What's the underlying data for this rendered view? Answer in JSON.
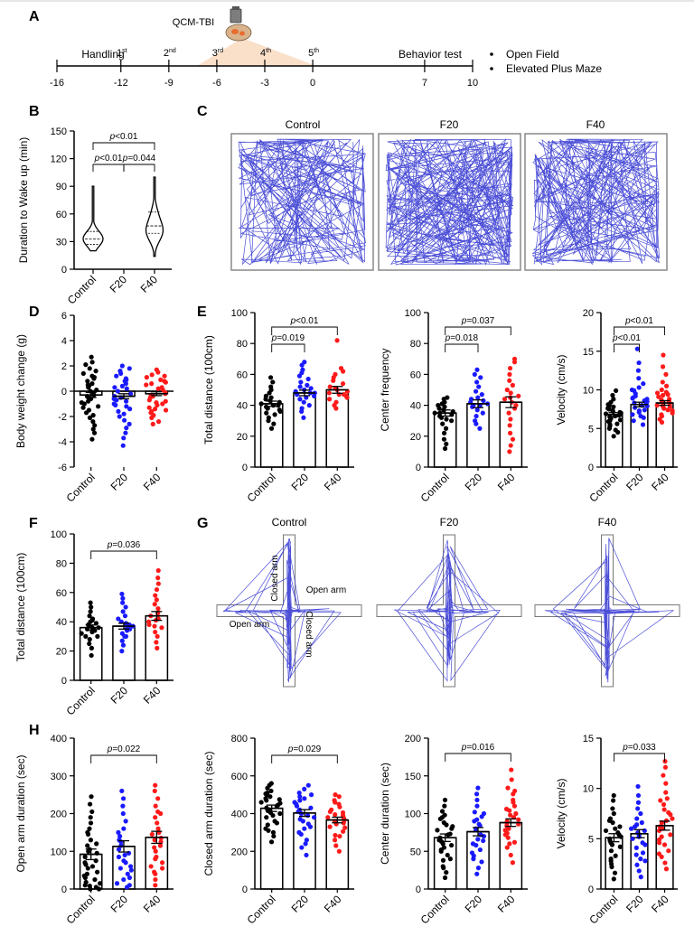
{
  "panels": {
    "A": {
      "letter": "A",
      "device": "QCM-TBI",
      "handling_label": "Handling",
      "behavior_label": "Behavior test",
      "tests": [
        "Open Field",
        "Elevated Plus Maze"
      ],
      "axis_ticks": [
        -16,
        -12,
        -9,
        -6,
        -3,
        0,
        7,
        10
      ],
      "injections": [
        {
          "num": "1",
          "sup": "st",
          "day": -12
        },
        {
          "num": "2",
          "sup": "nd",
          "day": -9
        },
        {
          "num": "3",
          "sup": "rd",
          "day": -6
        },
        {
          "num": "4",
          "sup": "th",
          "day": -3
        },
        {
          "num": "5",
          "sup": "th",
          "day": 0
        }
      ]
    },
    "B": {
      "letter": "B"
    },
    "C": {
      "letter": "C",
      "groups": [
        "Control",
        "F20",
        "F40"
      ]
    },
    "D": {
      "letter": "D"
    },
    "E": {
      "letter": "E"
    },
    "F": {
      "letter": "F"
    },
    "G": {
      "letter": "G",
      "groups": [
        "Control",
        "F20",
        "F40"
      ],
      "closed_arm_label": "Closed arm",
      "open_arm_label": "Open arm"
    },
    "H": {
      "letter": "H"
    }
  },
  "colors": {
    "Control": "#000000",
    "F20": "#1a1aff",
    "F40": "#ff1a1a",
    "track": "#2b2fcf"
  },
  "chart_data": [
    {
      "id": "B",
      "type": "violin",
      "ylabel": "Duration to Wake  up (min)",
      "ylim": [
        0,
        150
      ],
      "yticks": [
        0,
        30,
        60,
        90,
        120,
        150
      ],
      "categories": [
        "Control",
        "F20",
        "F40"
      ],
      "series": [
        {
          "name": "Control",
          "median": 33,
          "q1": 27,
          "q3": 41,
          "min": 20,
          "max": 90
        },
        {
          "name": "F40",
          "median": 47,
          "q1": 39,
          "q3": 62,
          "min": 14,
          "max": 100
        }
      ],
      "annotations": [
        {
          "from": 0,
          "to": 2,
          "label": "p<0.01"
        },
        {
          "from": 0,
          "to": 1,
          "label": "p<0.01"
        },
        {
          "from": 1,
          "to": 2,
          "label": "p=0.044"
        }
      ]
    },
    {
      "id": "D",
      "type": "bar",
      "ylabel": "Body weight change (g)",
      "ylim": [
        -6,
        6
      ],
      "yticks": [
        -6,
        -4,
        -2,
        0,
        2,
        4,
        6
      ],
      "categories": [
        "Control",
        "F20",
        "F40"
      ],
      "means": [
        -0.3,
        -0.4,
        -0.2
      ],
      "sems": [
        0.2,
        0.2,
        0.15
      ],
      "points": [
        [
          2.7,
          2.3,
          2.1,
          1.8,
          1.6,
          1.4,
          1.2,
          1.0,
          0.8,
          0.6,
          0.4,
          0.3,
          0.1,
          0.0,
          -0.1,
          -0.2,
          -0.4,
          -0.5,
          -0.6,
          -0.8,
          -1.0,
          -1.2,
          -1.3,
          -1.5,
          -1.7,
          -1.9,
          -2.1,
          -2.4,
          -2.7,
          -3.0,
          -3.3,
          -3.8,
          -0.3,
          0.5,
          -0.9,
          1.1
        ],
        [
          2.0,
          1.8,
          1.6,
          1.4,
          1.2,
          1.0,
          0.8,
          0.6,
          0.4,
          0.2,
          0.0,
          -0.2,
          -0.4,
          -0.6,
          -0.8,
          -1.0,
          -1.2,
          -1.4,
          -1.6,
          -1.8,
          -2.0,
          -2.3,
          -2.6,
          -2.9,
          -3.3,
          -3.7,
          -4.3,
          0.9,
          -0.5,
          -1.1,
          0.3,
          -0.7
        ],
        [
          1.7,
          1.5,
          1.3,
          1.1,
          0.9,
          0.7,
          0.5,
          0.3,
          0.1,
          -0.1,
          -0.3,
          -0.5,
          -0.7,
          -0.9,
          -1.1,
          -1.3,
          -1.5,
          -1.7,
          -1.9,
          -2.1,
          -2.4,
          -2.6,
          0.6,
          -0.4,
          -1.0,
          1.2,
          0.2,
          -0.8,
          -1.4,
          0.8,
          -0.2,
          -1.6
        ]
      ],
      "annotations": []
    },
    {
      "id": "E1",
      "type": "bar",
      "ylabel": "Total distance (100cm)",
      "ylim": [
        0,
        100
      ],
      "yticks": [
        0,
        20,
        40,
        60,
        80,
        100
      ],
      "categories": [
        "Control",
        "F20",
        "F40"
      ],
      "means": [
        41,
        48,
        50
      ],
      "sems": [
        1.7,
        1.8,
        2.2
      ],
      "points": [
        [
          25,
          28,
          30,
          32,
          34,
          35,
          37,
          38,
          39,
          40,
          41,
          42,
          43,
          44,
          45,
          46,
          48,
          50,
          52,
          55,
          58,
          40,
          36
        ],
        [
          32,
          36,
          38,
          40,
          42,
          44,
          45,
          46,
          47,
          48,
          49,
          50,
          51,
          52,
          53,
          55,
          57,
          59,
          61,
          63,
          66,
          68,
          48
        ],
        [
          38,
          40,
          42,
          44,
          45,
          46,
          47,
          48,
          49,
          50,
          52,
          54,
          56,
          58,
          60,
          62,
          64,
          82,
          51,
          47
        ]
      ],
      "annotations": [
        {
          "from": 0,
          "to": 2,
          "label": "p<0.01"
        },
        {
          "from": 0,
          "to": 1,
          "label": "p=0.019"
        }
      ]
    },
    {
      "id": "E2",
      "type": "bar",
      "ylabel": "Center frequency",
      "ylim": [
        0,
        100
      ],
      "yticks": [
        0,
        20,
        40,
        60,
        80,
        100
      ],
      "categories": [
        "Control",
        "F20",
        "F40"
      ],
      "means": [
        35,
        41,
        42
      ],
      "sems": [
        2,
        2.5,
        3.5
      ],
      "points": [
        [
          12,
          15,
          18,
          22,
          25,
          28,
          30,
          32,
          33,
          34,
          35,
          36,
          37,
          38,
          39,
          40,
          41,
          42,
          44,
          45,
          35,
          31
        ],
        [
          25,
          28,
          30,
          33,
          35,
          37,
          39,
          40,
          41,
          42,
          43,
          44,
          45,
          47,
          49,
          52,
          55,
          58,
          60,
          63,
          40
        ],
        [
          10,
          14,
          18,
          22,
          27,
          31,
          35,
          38,
          40,
          42,
          44,
          46,
          48,
          50,
          53,
          56,
          60,
          64,
          68,
          70,
          45
        ]
      ],
      "annotations": [
        {
          "from": 0,
          "to": 2,
          "label": "p=0.037"
        },
        {
          "from": 0,
          "to": 1,
          "label": "p=0.018"
        }
      ]
    },
    {
      "id": "E3",
      "type": "bar",
      "ylabel": "Velocity (cm/s)",
      "ylim": [
        0,
        20
      ],
      "yticks": [
        0,
        5,
        10,
        15,
        20
      ],
      "categories": [
        "Control",
        "F20",
        "F40"
      ],
      "means": [
        6.8,
        8.1,
        8.3
      ],
      "sems": [
        0.25,
        0.3,
        0.3
      ],
      "points": [
        [
          4.0,
          4.5,
          5.0,
          5.3,
          5.6,
          5.9,
          6.1,
          6.3,
          6.5,
          6.7,
          6.9,
          7.1,
          7.3,
          7.5,
          7.8,
          8.1,
          8.4,
          8.8,
          9.3,
          9.9,
          6.0,
          6.6,
          7.0,
          5.5,
          7.6,
          6.2,
          6.8,
          7.2,
          8.0,
          4.8
        ],
        [
          5.5,
          6.0,
          6.4,
          6.8,
          7.1,
          7.4,
          7.7,
          8.0,
          8.3,
          8.6,
          8.9,
          9.2,
          9.5,
          9.9,
          10.3,
          10.8,
          11.5,
          12.5,
          13.5,
          15.3,
          7.9,
          8.2,
          6.6,
          9.0,
          8.5,
          7.3,
          10.0,
          8.8
        ],
        [
          5.8,
          6.2,
          6.6,
          7.0,
          7.3,
          7.6,
          7.9,
          8.2,
          8.5,
          8.8,
          9.1,
          9.4,
          9.7,
          10.0,
          10.5,
          11.0,
          12.0,
          13.0,
          14.5,
          8.0,
          8.7,
          7.4,
          9.3,
          7.8,
          8.4,
          6.8,
          9.6
        ]
      ],
      "annotations": [
        {
          "from": 0,
          "to": 2,
          "label": "p<0.01"
        },
        {
          "from": 0,
          "to": 1,
          "label": "p<0.01"
        }
      ]
    },
    {
      "id": "F",
      "type": "bar",
      "ylabel": "Total distance (100cm)",
      "ylim": [
        0,
        100
      ],
      "yticks": [
        0,
        20,
        40,
        60,
        80,
        100
      ],
      "categories": [
        "Control",
        "F20",
        "F40"
      ],
      "means": [
        36,
        37,
        44
      ],
      "sems": [
        1.8,
        2,
        3
      ],
      "points": [
        [
          17,
          22,
          25,
          28,
          30,
          32,
          33,
          34,
          35,
          36,
          37,
          38,
          39,
          40,
          41,
          42,
          44,
          47,
          50,
          53,
          30,
          36
        ],
        [
          20,
          24,
          27,
          30,
          32,
          34,
          35,
          36,
          37,
          38,
          39,
          40,
          42,
          44,
          47,
          50,
          53,
          56,
          59,
          35,
          30
        ],
        [
          22,
          26,
          30,
          33,
          36,
          38,
          40,
          42,
          44,
          46,
          49,
          52,
          55,
          58,
          62,
          66,
          70,
          75,
          41,
          37
        ]
      ],
      "annotations": [
        {
          "from": 0,
          "to": 2,
          "label": "p=0.036"
        }
      ]
    },
    {
      "id": "H1",
      "type": "bar",
      "ylabel": "Open arm duration (sec)",
      "ylim": [
        0,
        400
      ],
      "yticks": [
        0,
        100,
        200,
        300,
        400
      ],
      "categories": [
        "Control",
        "F20",
        "F40"
      ],
      "means": [
        92,
        113,
        137
      ],
      "sems": [
        14,
        15,
        16
      ],
      "points": [
        [
          0,
          5,
          10,
          18,
          25,
          35,
          45,
          55,
          65,
          75,
          85,
          95,
          105,
          115,
          130,
          145,
          160,
          175,
          190,
          205,
          225,
          245,
          15,
          40,
          70,
          100,
          0,
          8,
          150,
          60,
          120,
          30
        ],
        [
          5,
          15,
          25,
          40,
          55,
          70,
          85,
          95,
          105,
          115,
          125,
          140,
          160,
          180,
          200,
          220,
          240,
          260,
          30,
          60,
          90,
          130,
          10,
          75,
          150,
          50
        ],
        [
          10,
          25,
          40,
          55,
          70,
          85,
          100,
          115,
          125,
          135,
          145,
          160,
          175,
          190,
          205,
          220,
          240,
          260,
          275,
          60,
          110,
          150,
          80,
          200,
          130,
          45
        ]
      ],
      "annotations": [
        {
          "from": 0,
          "to": 2,
          "label": "p=0.022"
        }
      ]
    },
    {
      "id": "H2",
      "type": "bar",
      "ylabel": "Closed arm duration (sec)",
      "ylim": [
        0,
        800
      ],
      "yticks": [
        0,
        200,
        400,
        600,
        800
      ],
      "categories": [
        "Control",
        "F20",
        "F40"
      ],
      "means": [
        428,
        403,
        366
      ],
      "sems": [
        17,
        18,
        15
      ],
      "points": [
        [
          250,
          280,
          310,
          340,
          360,
          380,
          400,
          415,
          430,
          445,
          460,
          475,
          490,
          505,
          520,
          535,
          550,
          560,
          420,
          440,
          470,
          390,
          350,
          500,
          320,
          510,
          455,
          405,
          480,
          300
        ],
        [
          180,
          220,
          260,
          290,
          320,
          345,
          370,
          390,
          410,
          430,
          450,
          470,
          490,
          510,
          530,
          550,
          400,
          420,
          360,
          460,
          330,
          500,
          240,
          440,
          380,
          480,
          300
        ],
        [
          200,
          230,
          260,
          285,
          305,
          325,
          345,
          360,
          375,
          390,
          405,
          420,
          435,
          450,
          470,
          490,
          500,
          350,
          380,
          410,
          330,
          460,
          280,
          395,
          365
        ]
      ],
      "annotations": [
        {
          "from": 0,
          "to": 2,
          "label": "p=0.029"
        }
      ]
    },
    {
      "id": "H3",
      "type": "bar",
      "ylabel": "Center duration (sec)",
      "ylim": [
        0,
        200
      ],
      "yticks": [
        0,
        50,
        100,
        150,
        200
      ],
      "categories": [
        "Control",
        "F20",
        "F40"
      ],
      "means": [
        68,
        76,
        88
      ],
      "sems": [
        5,
        5.5,
        5
      ],
      "points": [
        [
          15,
          22,
          30,
          38,
          45,
          52,
          58,
          63,
          68,
          73,
          78,
          83,
          88,
          93,
          98,
          103,
          110,
          118,
          60,
          72,
          50,
          85,
          40,
          95,
          65,
          28,
          80,
          55
        ],
        [
          20,
          28,
          36,
          44,
          52,
          60,
          66,
          72,
          78,
          84,
          90,
          96,
          102,
          110,
          118,
          126,
          134,
          70,
          80,
          58,
          92,
          48,
          100,
          64,
          86,
          40
        ],
        [
          35,
          45,
          55,
          62,
          68,
          74,
          80,
          86,
          92,
          98,
          104,
          110,
          118,
          126,
          134,
          145,
          158,
          90,
          95,
          84,
          100,
          72,
          106,
          78,
          88,
          115,
          60,
          130
        ]
      ],
      "annotations": [
        {
          "from": 0,
          "to": 2,
          "label": "p=0.016"
        }
      ]
    },
    {
      "id": "H4",
      "type": "bar",
      "ylabel": "Velocity (cm/s)",
      "ylim": [
        0,
        15
      ],
      "yticks": [
        0,
        5,
        10,
        15
      ],
      "categories": [
        "Control",
        "F20",
        "F40"
      ],
      "means": [
        5.1,
        5.5,
        6.3
      ],
      "sems": [
        0.4,
        0.4,
        0.45
      ],
      "points": [
        [
          1.0,
          1.6,
          2.2,
          2.8,
          3.3,
          3.8,
          4.2,
          4.6,
          5.0,
          5.4,
          5.8,
          6.2,
          6.6,
          7.0,
          7.5,
          8.0,
          8.8,
          9.3,
          4.4,
          5.6,
          3.0,
          6.0,
          5.2,
          4.8,
          6.8,
          2.5
        ],
        [
          1.2,
          1.8,
          2.4,
          3.0,
          3.6,
          4.1,
          4.6,
          5.0,
          5.4,
          5.8,
          6.2,
          6.6,
          7.0,
          7.5,
          8.0,
          8.6,
          9.3,
          10.2,
          5.2,
          4.4,
          6.4,
          3.4,
          5.6,
          6.0,
          2.8
        ],
        [
          2.0,
          2.6,
          3.2,
          3.8,
          4.4,
          4.9,
          5.4,
          5.8,
          6.2,
          6.6,
          7.0,
          7.4,
          7.9,
          8.4,
          9.0,
          9.6,
          10.5,
          11.3,
          12.1,
          12.7,
          6.0,
          6.8,
          5.2,
          7.6,
          4.6,
          8.8,
          3.5
        ]
      ],
      "annotations": [
        {
          "from": 0,
          "to": 2,
          "label": "p=0.033"
        }
      ]
    }
  ]
}
